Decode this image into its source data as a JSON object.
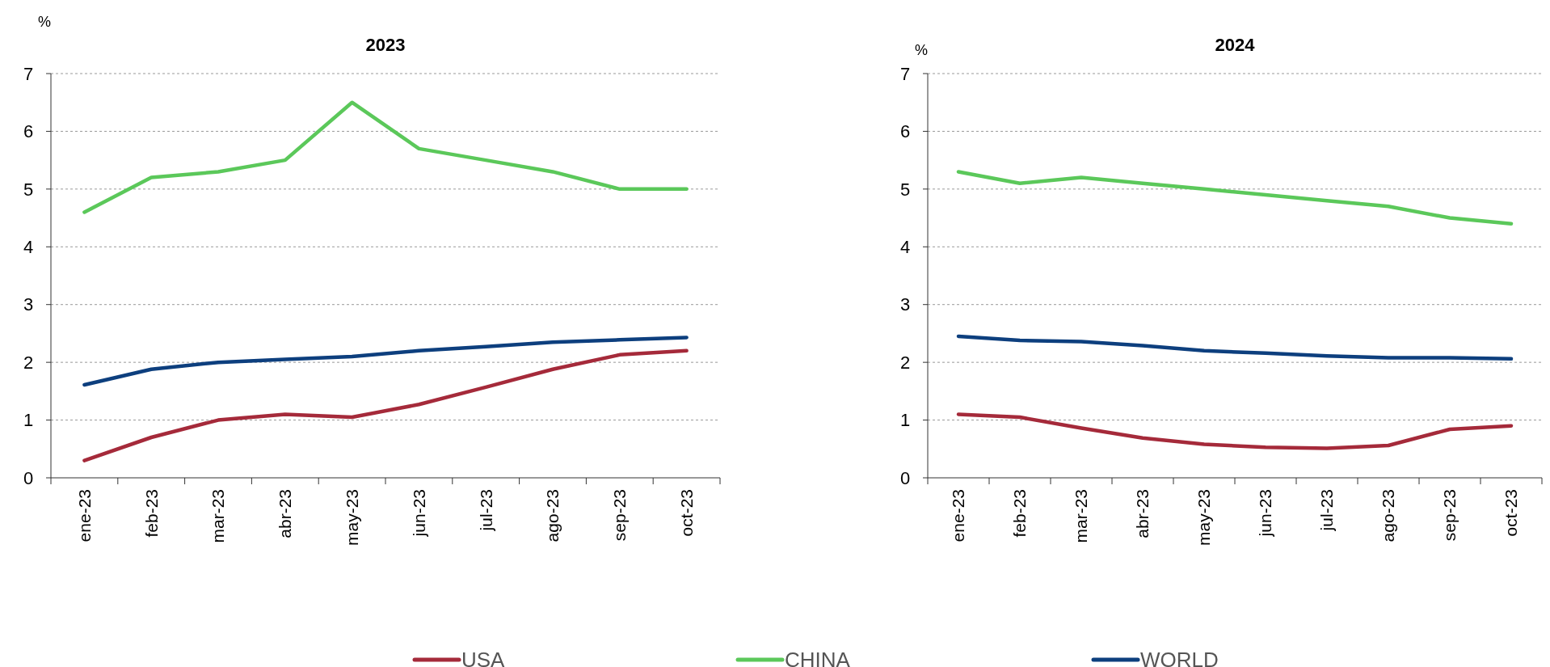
{
  "chart_data": [
    {
      "type": "line",
      "title": "2023",
      "ylabel": "%",
      "categories": [
        "ene-23",
        "feb-23",
        "mar-23",
        "abr-23",
        "may-23",
        "jun-23",
        "jul-23",
        "ago-23",
        "sep-23",
        "oct-23"
      ],
      "series": [
        {
          "name": "USA",
          "color": "#a52a3a",
          "values": [
            0.3,
            0.7,
            1.0,
            1.1,
            1.05,
            1.27,
            1.57,
            1.88,
            2.13,
            2.2
          ]
        },
        {
          "name": "CHINA",
          "color": "#5bc85a",
          "values": [
            4.6,
            5.2,
            5.3,
            5.5,
            6.5,
            5.7,
            5.5,
            5.3,
            5.0,
            5.0
          ]
        },
        {
          "name": "WORLD",
          "color": "#0d3f7e",
          "values": [
            1.61,
            1.88,
            2.0,
            2.05,
            2.1,
            2.2,
            2.27,
            2.35,
            2.39,
            2.43
          ]
        }
      ],
      "ylim": [
        0,
        7
      ],
      "yticks": [
        0,
        1,
        2,
        3,
        4,
        5,
        6,
        7
      ],
      "grid": "y",
      "legend": "bottom",
      "line_style": "solid"
    },
    {
      "type": "line",
      "title": "2024",
      "ylabel": "%",
      "categories": [
        "ene-23",
        "feb-23",
        "mar-23",
        "abr-23",
        "may-23",
        "jun-23",
        "jul-23",
        "ago-23",
        "sep-23",
        "oct-23"
      ],
      "series": [
        {
          "color": "#a52a3a",
          "values": [
            1.1,
            1.05,
            0.86,
            0.69,
            0.58,
            0.53,
            0.51,
            0.56,
            0.84,
            0.9
          ]
        },
        {
          "color": "#5bc85a",
          "values": [
            5.3,
            5.1,
            5.2,
            5.1,
            5.0,
            4.9,
            4.8,
            4.7,
            4.5,
            4.4
          ]
        },
        {
          "color": "#0d3f7e",
          "values": [
            2.45,
            2.38,
            2.36,
            2.29,
            2.2,
            2.16,
            2.11,
            2.08,
            2.08,
            2.06
          ]
        }
      ],
      "ylim": [
        0,
        7
      ],
      "yticks": [
        0,
        1,
        2,
        3,
        4,
        5,
        6,
        7
      ],
      "grid": "y",
      "line_style": "solid"
    }
  ]
}
